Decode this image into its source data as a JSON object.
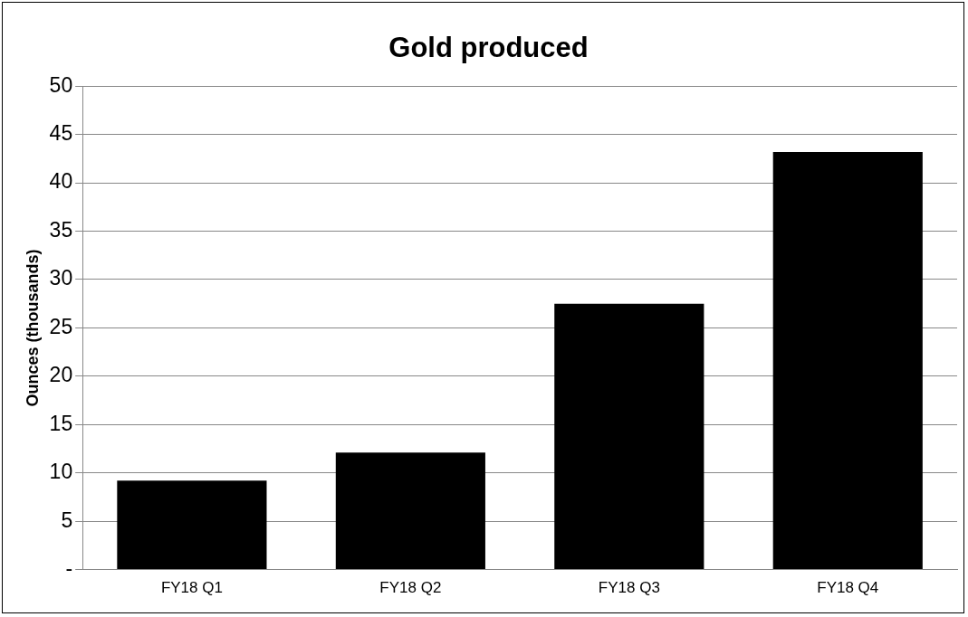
{
  "chart_data": {
    "type": "bar",
    "title": "Gold produced",
    "ylabel": "Ounces (thousands)",
    "categories": [
      "FY18 Q1",
      "FY18 Q2",
      "FY18 Q3",
      "FY18 Q4"
    ],
    "values": [
      9.2,
      12.1,
      27.5,
      43.2
    ],
    "color": "#000000",
    "ylim": [
      0,
      50
    ],
    "yticks": [
      {
        "value": 0,
        "label": "-"
      },
      5,
      10,
      15,
      20,
      25,
      30,
      35,
      40,
      45,
      50
    ],
    "grid": "y",
    "legend": false
  }
}
